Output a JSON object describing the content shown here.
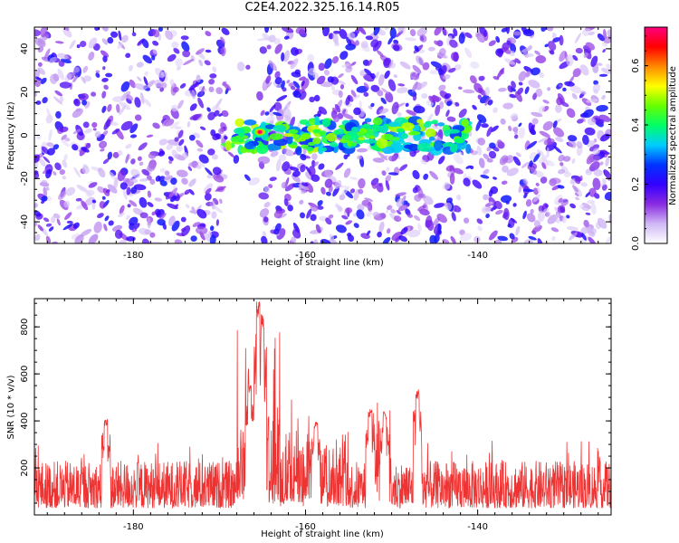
{
  "title": "C2E4.2022.325.16.14.R05",
  "chart_data": [
    {
      "type": "heatmap",
      "xlabel": "Height of straight line (km)",
      "ylabel": "Frequency (Hz)",
      "xlim": [
        -191.5,
        -124.5
      ],
      "ylim": [
        -50,
        50
      ],
      "xticks": [
        -180,
        -160,
        -140
      ],
      "xtick_labels": [
        "-180",
        "-160",
        "-140"
      ],
      "yticks": [
        -40,
        -20,
        0,
        20,
        40
      ],
      "ytick_labels": [
        "-40",
        "-20",
        "0",
        "20",
        "40"
      ],
      "colorbar": {
        "label": "Normalized spectral amplitude",
        "range": [
          0.0,
          0.73
        ],
        "ticks": [
          0.0,
          0.2,
          0.4,
          0.6
        ],
        "tick_labels": [
          "0.0",
          "0.2",
          "0.4",
          "0.6"
        ],
        "colors": [
          "#ffffff",
          "#cfb8f5",
          "#8a2be2",
          "#3300ff",
          "#0033ff",
          "#00ccff",
          "#00ff66",
          "#66ff00",
          "#ffff00",
          "#ff8800",
          "#ff0000",
          "#ff0080"
        ]
      },
      "features": {
        "signal_band": {
          "x_start": -170,
          "x_end": -141,
          "frequency": 0
        },
        "quiet_gap": {
          "x_start": -169,
          "x_end": -165
        },
        "peak": {
          "x": -165.3,
          "frequency": 1.5,
          "amplitude": 0.72
        }
      },
      "grid": false
    },
    {
      "type": "line",
      "xlabel": "Height of straight line (km)",
      "ylabel": "SNR (10 * v/v)",
      "xlim": [
        -191.5,
        -124.5
      ],
      "ylim": [
        0,
        920
      ],
      "xticks": [
        -180,
        -160,
        -140
      ],
      "xtick_labels": [
        "-180",
        "-160",
        "-140"
      ],
      "yticks": [
        200,
        400,
        600,
        800
      ],
      "ytick_labels": [
        "200",
        "400",
        "600",
        "800"
      ],
      "color": "#ee3333",
      "baseline": {
        "mean": 135,
        "range": [
          30,
          300
        ]
      },
      "peaks": [
        {
          "x": -166.5,
          "y": 560
        },
        {
          "x": -165.5,
          "y": 910
        },
        {
          "x": -165.0,
          "y": 860
        },
        {
          "x": -152.5,
          "y": 450
        },
        {
          "x": -150.8,
          "y": 440
        },
        {
          "x": -147.0,
          "y": 535
        },
        {
          "x": -183.2,
          "y": 410
        },
        {
          "x": -158.8,
          "y": 400
        }
      ],
      "grid": false
    }
  ]
}
